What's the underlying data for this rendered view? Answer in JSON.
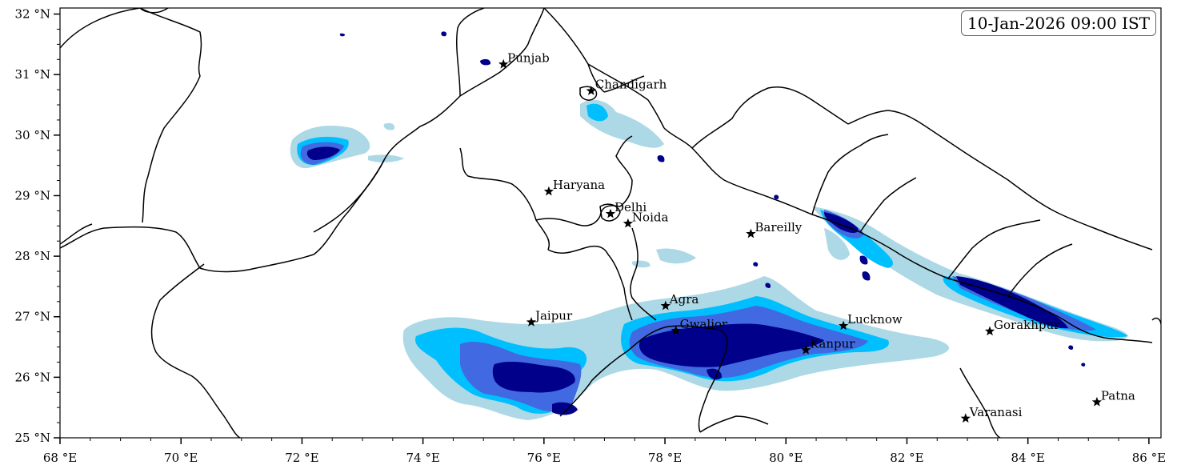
{
  "timestamp": "10-Jan-2026 09:00 IST",
  "map_extent": {
    "lon": [
      68,
      86.2
    ],
    "lat": [
      25,
      32.1
    ]
  },
  "x_ticks": [
    {
      "value": 68,
      "label": "68 °E"
    },
    {
      "value": 70,
      "label": "70 °E"
    },
    {
      "value": 72,
      "label": "72 °E"
    },
    {
      "value": 74,
      "label": "74 °E"
    },
    {
      "value": 76,
      "label": "76 °E"
    },
    {
      "value": 78,
      "label": "78 °E"
    },
    {
      "value": 80,
      "label": "80 °E"
    },
    {
      "value": 82,
      "label": "82 °E"
    },
    {
      "value": 84,
      "label": "84 °E"
    },
    {
      "value": 86,
      "label": "86 °E"
    }
  ],
  "y_ticks": [
    {
      "value": 25,
      "label": "25 °N"
    },
    {
      "value": 26,
      "label": "26 °N"
    },
    {
      "value": 27,
      "label": "27 °N"
    },
    {
      "value": 28,
      "label": "28 °N"
    },
    {
      "value": 29,
      "label": "29 °N"
    },
    {
      "value": 30,
      "label": "30 °N"
    },
    {
      "value": 31,
      "label": "31 °N"
    },
    {
      "value": 32,
      "label": "32 °N"
    }
  ],
  "cities": [
    {
      "name": "Punjab",
      "lon": 75.33,
      "lat": 31.17
    },
    {
      "name": "Chandigarh",
      "lon": 76.78,
      "lat": 30.73
    },
    {
      "name": "Haryana",
      "lon": 76.08,
      "lat": 29.07
    },
    {
      "name": "Delhi",
      "lon": 77.1,
      "lat": 28.7
    },
    {
      "name": "Noida",
      "lon": 77.39,
      "lat": 28.54
    },
    {
      "name": "Bareilly",
      "lon": 79.42,
      "lat": 28.37
    },
    {
      "name": "Agra",
      "lon": 78.01,
      "lat": 27.18
    },
    {
      "name": "Jaipur",
      "lon": 75.79,
      "lat": 26.91
    },
    {
      "name": "Gwalior",
      "lon": 78.18,
      "lat": 26.77
    },
    {
      "name": "Lucknow",
      "lon": 80.95,
      "lat": 26.85
    },
    {
      "name": "Gorakhpur",
      "lon": 83.37,
      "lat": 26.76
    },
    {
      "name": "Kanpur",
      "lon": 80.33,
      "lat": 26.45
    },
    {
      "name": "Varanasi",
      "lon": 82.97,
      "lat": 25.32
    },
    {
      "name": "Patna",
      "lon": 85.14,
      "lat": 25.59
    }
  ],
  "colors": {
    "level_1": "#add8e6",
    "level_2": "#00bfff",
    "level_3": "#4169e1",
    "level_4": "#00008b",
    "border": "#000000",
    "city_marker": "#000000"
  }
}
